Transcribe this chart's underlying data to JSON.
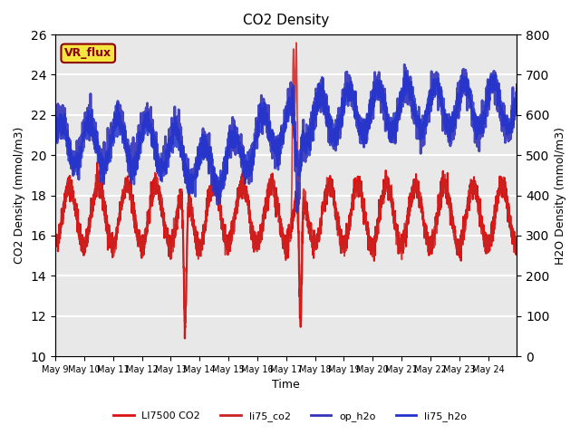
{
  "title": "CO2 Density",
  "xlabel": "Time",
  "ylabel_left": "CO2 Density (mmol/m3)",
  "ylabel_right": "H2O Density (mmol/m3)",
  "ylim_left": [
    10,
    26
  ],
  "ylim_right": [
    0,
    800
  ],
  "yticks_left": [
    10,
    12,
    14,
    16,
    18,
    20,
    22,
    24,
    26
  ],
  "yticks_right": [
    0,
    100,
    200,
    300,
    400,
    500,
    600,
    700,
    800
  ],
  "xtick_labels": [
    "May 9",
    "May 10",
    "May 11",
    "May 12",
    "May 13",
    "May 14",
    "May 15",
    "May 16",
    "May 17",
    "May 18",
    "May 19",
    "May 20",
    "May 21",
    "May 22",
    "May 23",
    "May 24"
  ],
  "legend_labels": [
    "LI7500 CO2",
    "li75_co2",
    "op_h2o",
    "li75_h2o"
  ],
  "background_color": "#e8e8e8",
  "grid_color": "#ffffff",
  "li7500_color": "#dd1111",
  "li75_co2_color": "#cc2222",
  "op_h2o_color": "#3333bb",
  "li75_h2o_color": "#2233cc",
  "linewidth_co2": 1.5,
  "linewidth_h2o": 2.0
}
